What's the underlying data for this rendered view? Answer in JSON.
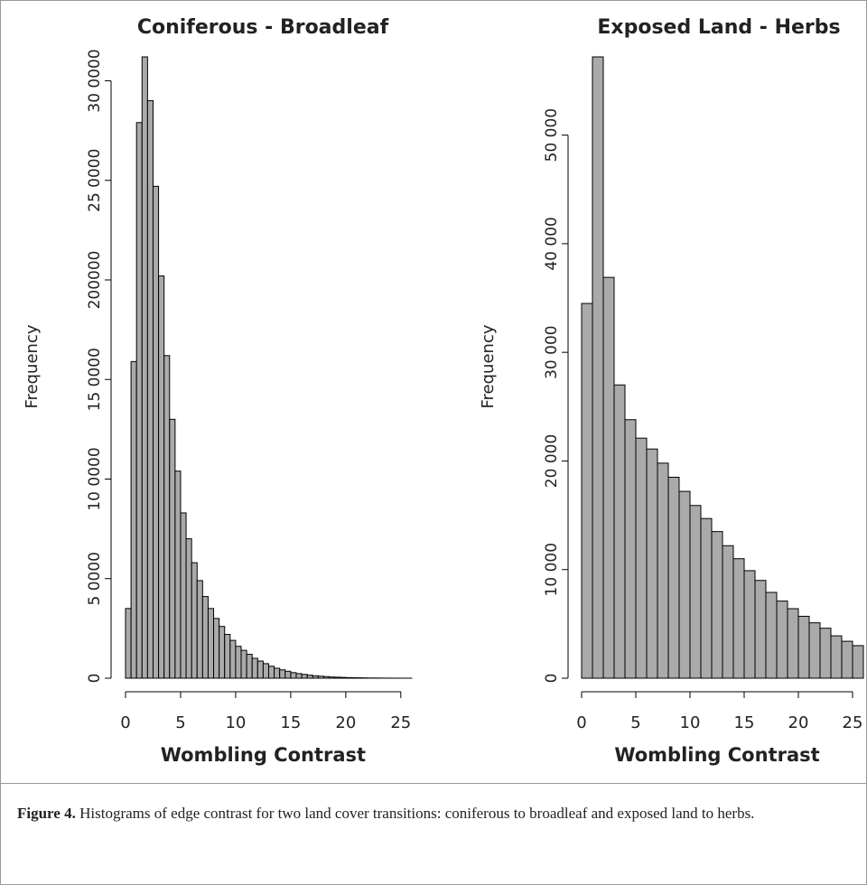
{
  "chart_data": [
    {
      "type": "histogram",
      "title": "Coniferous - Broadleaf",
      "xlabel": "Wombling Contrast",
      "ylabel": "Frequency",
      "color": "#aaaaaa",
      "bins": [
        0,
        0.5,
        1,
        1.5,
        2,
        2.5,
        3,
        3.5,
        4,
        4.5,
        5,
        5.5,
        6,
        6.5,
        7,
        7.5,
        8,
        8.5,
        9,
        9.5,
        10,
        10.5,
        11,
        11.5,
        12,
        12.5,
        13,
        13.5,
        14,
        14.5,
        15,
        15.5,
        16,
        16.5,
        17,
        17.5,
        18,
        18.5,
        19,
        19.5,
        20,
        20.5,
        21,
        21.5,
        22,
        22.5,
        23,
        23.5,
        24,
        24.5,
        25,
        25.5,
        26
      ],
      "counts": [
        35000,
        159000,
        279000,
        312000,
        290000,
        247000,
        202000,
        162000,
        130000,
        104000,
        83000,
        70000,
        58000,
        49000,
        41000,
        35000,
        30000,
        26000,
        22000,
        19000,
        16000,
        14000,
        12000,
        10000,
        8600,
        7300,
        6000,
        5000,
        4200,
        3500,
        2800,
        2300,
        1900,
        1500,
        1200,
        1000,
        800,
        600,
        500,
        400,
        300,
        250,
        200,
        150,
        100,
        80,
        60,
        40,
        30,
        20,
        10,
        5
      ],
      "xlim": [
        0,
        26
      ],
      "xticks": [
        0,
        5,
        10,
        15,
        20,
        25
      ],
      "ylim": [
        0,
        312000
      ],
      "yticks": [
        0,
        {
          "value": 50000,
          "label": "5 0000"
        },
        {
          "value": 100000,
          "label": "10 0000"
        },
        {
          "value": 150000,
          "label": "15 0000"
        },
        200000,
        {
          "value": 250000,
          "label": "25 0000"
        },
        {
          "value": 300000,
          "label": "30 0000"
        }
      ]
    },
    {
      "type": "histogram",
      "title": "Exposed Land - Herbs",
      "xlabel": "Wombling Contrast",
      "ylabel": "Frequency",
      "color": "#aaaaaa",
      "bins": [
        0,
        1,
        2,
        3,
        4,
        5,
        6,
        7,
        8,
        9,
        10,
        11,
        12,
        13,
        14,
        15,
        16,
        17,
        18,
        19,
        20,
        21,
        22,
        23,
        24,
        25,
        26
      ],
      "counts": [
        34500,
        57200,
        36900,
        27000,
        23800,
        22100,
        21100,
        19800,
        18500,
        17200,
        15900,
        14700,
        13500,
        12200,
        11000,
        9900,
        9000,
        7900,
        7100,
        6400,
        5700,
        5100,
        4600,
        3900,
        3400,
        3000
      ],
      "xlim": [
        0,
        26
      ],
      "xticks": [
        0,
        5,
        10,
        15,
        20,
        25
      ],
      "ylim": [
        0,
        57200
      ],
      "yticks": [
        0,
        {
          "value": 10000,
          "label": "10 000"
        },
        {
          "value": 20000,
          "label": "20 000"
        },
        {
          "value": 30000,
          "label": "30 000"
        },
        {
          "value": 40000,
          "label": "40 000"
        },
        {
          "value": 50000,
          "label": "50 000"
        }
      ]
    }
  ],
  "caption": {
    "label": "Figure 4.",
    "text": "Histograms of edge contrast for two land cover transitions: coniferous to broadleaf and exposed land to herbs."
  }
}
